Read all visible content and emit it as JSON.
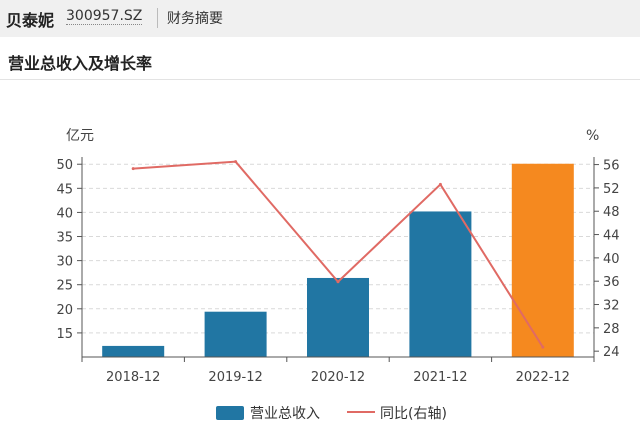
{
  "header": {
    "stock_name": "贝泰妮",
    "stock_code": "300957.SZ",
    "tab_label": "财务摘要"
  },
  "section": {
    "title": "营业总收入及增长率"
  },
  "chart_data": {
    "type": "bar",
    "categories": [
      "2018-12",
      "2019-12",
      "2020-12",
      "2021-12",
      "2022-12"
    ],
    "series": [
      {
        "name": "营业总收入",
        "type": "bar",
        "axis": "left",
        "values": [
          12.3,
          19.4,
          26.4,
          40.2,
          50.1
        ],
        "color": "#2176a3",
        "highlight_color": "#f5891f",
        "highlight_index": 4
      },
      {
        "name": "同比(右轴)",
        "type": "line",
        "axis": "right",
        "values": [
          55.3,
          56.5,
          35.9,
          52.6,
          24.7
        ],
        "color": "#e06a64"
      }
    ],
    "y_left": {
      "unit": "亿元",
      "ticks": [
        15,
        20,
        25,
        30,
        35,
        40,
        45,
        50
      ],
      "range": [
        10,
        51.5
      ]
    },
    "y_right": {
      "unit": "%",
      "ticks": [
        24,
        28,
        32,
        36,
        40,
        44,
        48,
        52,
        56
      ],
      "range": [
        23,
        57.3
      ]
    },
    "grid": true,
    "legend_position": "bottom-center"
  }
}
